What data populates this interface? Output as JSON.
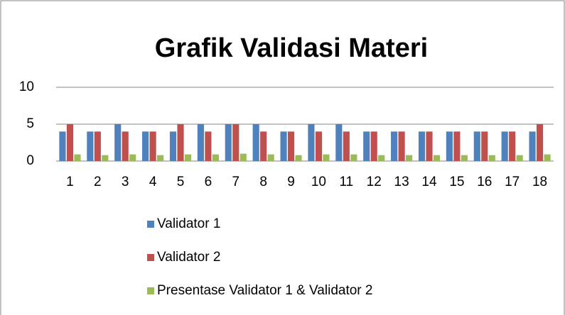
{
  "chart_data": {
    "type": "bar",
    "title": "Grafik Validasi Materi",
    "categories": [
      "1",
      "2",
      "3",
      "4",
      "5",
      "6",
      "7",
      "8",
      "9",
      "10",
      "11",
      "12",
      "13",
      "14",
      "15",
      "16",
      "17",
      "18"
    ],
    "series": [
      {
        "name": "Validator 1",
        "color": "#4f81bd",
        "values": [
          4,
          4,
          5,
          4,
          4,
          5,
          5,
          5,
          4,
          5,
          5,
          4,
          4,
          4,
          4,
          4,
          4,
          4
        ]
      },
      {
        "name": "Validator 2",
        "color": "#c0504d",
        "values": [
          5,
          4,
          4,
          4,
          5,
          4,
          5,
          4,
          4,
          4,
          4,
          4,
          4,
          4,
          4,
          4,
          4,
          5
        ]
      },
      {
        "name": "Presentase Validator 1 & Validator 2",
        "color": "#9bbb59",
        "values": [
          0.9,
          0.8,
          0.9,
          0.8,
          0.9,
          0.9,
          1.0,
          0.9,
          0.8,
          0.9,
          0.9,
          0.8,
          0.8,
          0.8,
          0.8,
          0.8,
          0.8,
          0.9
        ]
      }
    ],
    "ylim": [
      0,
      10
    ],
    "yticks": [
      0,
      5,
      10
    ],
    "grid": true,
    "legend": "bottom"
  }
}
